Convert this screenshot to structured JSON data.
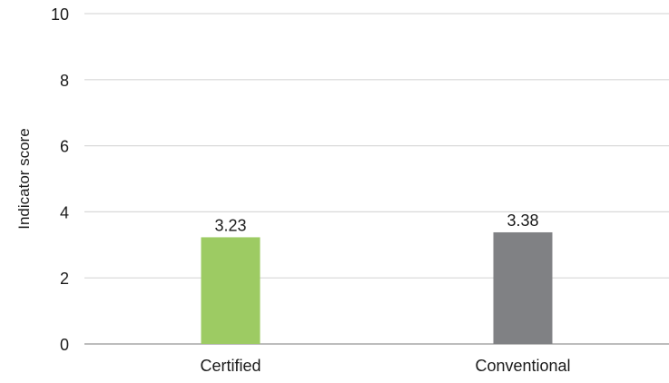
{
  "chart_data": {
    "type": "bar",
    "title": "",
    "xlabel": "",
    "ylabel": "Indicator score",
    "categories": [
      "Certified",
      "Conventional"
    ],
    "values": [
      3.23,
      3.38
    ],
    "data_labels": [
      "3.23",
      "3.38"
    ],
    "colors": [
      "#9dcb63",
      "#808184"
    ],
    "ylim": [
      0,
      10
    ],
    "yticks": [
      0,
      2,
      4,
      6,
      8,
      10
    ],
    "ytick_labels": [
      "0",
      "2",
      "4",
      "6",
      "8",
      "10"
    ],
    "grid": true,
    "legend": "none"
  }
}
